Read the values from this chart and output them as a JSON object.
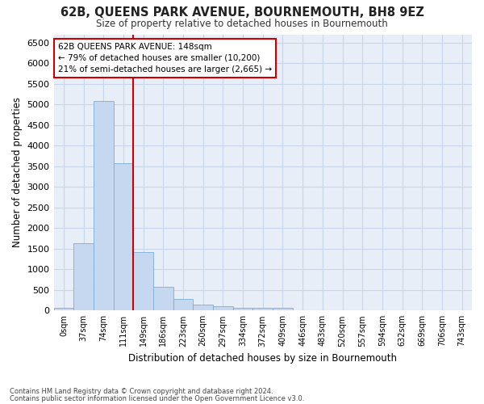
{
  "title1": "62B, QUEENS PARK AVENUE, BOURNEMOUTH, BH8 9EZ",
  "title2": "Size of property relative to detached houses in Bournemouth",
  "xlabel": "Distribution of detached houses by size in Bournemouth",
  "ylabel": "Number of detached properties",
  "footnote1": "Contains HM Land Registry data © Crown copyright and database right 2024.",
  "footnote2": "Contains public sector information licensed under the Open Government Licence v3.0.",
  "bar_labels": [
    "0sqm",
    "37sqm",
    "74sqm",
    "111sqm",
    "149sqm",
    "186sqm",
    "223sqm",
    "260sqm",
    "297sqm",
    "334sqm",
    "372sqm",
    "409sqm",
    "446sqm",
    "483sqm",
    "520sqm",
    "557sqm",
    "594sqm",
    "632sqm",
    "669sqm",
    "706sqm",
    "743sqm"
  ],
  "bar_values": [
    70,
    1630,
    5080,
    3580,
    1410,
    580,
    290,
    145,
    110,
    55,
    55,
    55,
    0,
    0,
    0,
    0,
    0,
    0,
    0,
    0,
    0
  ],
  "bar_color": "#c5d8f0",
  "bar_edge_color": "#7aadd4",
  "grid_color": "#c8d4e8",
  "red_line_color": "#cc0000",
  "annotation_text": "62B QUEENS PARK AVENUE: 148sqm\n← 79% of detached houses are smaller (10,200)\n21% of semi-detached houses are larger (2,665) →",
  "annotation_box_color": "#ffffff",
  "annotation_border_color": "#cc0000",
  "ylim": [
    0,
    6700
  ],
  "yticks": [
    0,
    500,
    1000,
    1500,
    2000,
    2500,
    3000,
    3500,
    4000,
    4500,
    5000,
    5500,
    6000,
    6500
  ],
  "fig_bg_color": "#ffffff",
  "plot_bg_color": "#e8eef8"
}
